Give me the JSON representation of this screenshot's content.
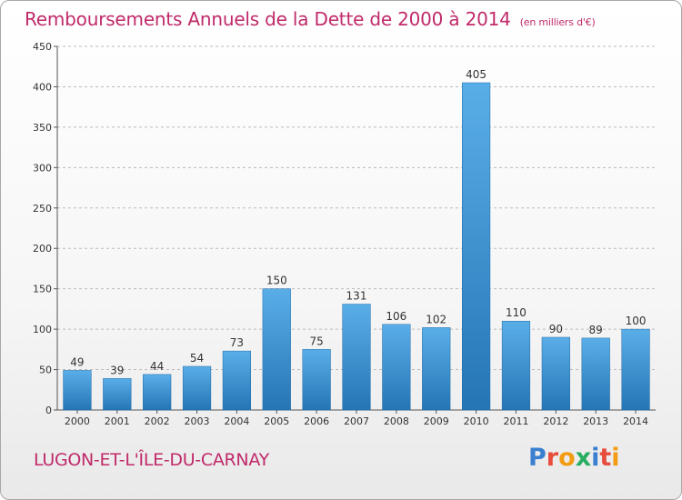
{
  "title": "Remboursements Annuels de la Dette de 2000 à 2014",
  "subtitle": "(en milliers d'€)",
  "location": "LUGON-ET-L'ÎLE-DU-CARNAY",
  "logo": {
    "text": "Proxiti",
    "letters": [
      {
        "ch": "P",
        "color": "#3b7fd0"
      },
      {
        "ch": "r",
        "color": "#e74c3c"
      },
      {
        "ch": "o",
        "color": "#f39c12"
      },
      {
        "ch": "x",
        "color": "#27ae60"
      },
      {
        "ch": "i",
        "color": "#3b7fd0"
      },
      {
        "ch": "t",
        "color": "#e74c3c"
      },
      {
        "ch": "i",
        "color": "#f39c12"
      }
    ]
  },
  "colors": {
    "bar_top": "#5aaee8",
    "bar_bottom": "#2575b5",
    "title": "#c02a6a",
    "grid": "#bbbbbb"
  },
  "chart_data": {
    "type": "bar",
    "title": "Remboursements Annuels de la Dette de 2000 à 2014",
    "subtitle": "(en milliers d'€)",
    "categories": [
      "2000",
      "2001",
      "2002",
      "2003",
      "2004",
      "2005",
      "2006",
      "2007",
      "2008",
      "2009",
      "2010",
      "2011",
      "2012",
      "2013",
      "2014"
    ],
    "values": [
      49,
      39,
      44,
      54,
      73,
      150,
      75,
      131,
      106,
      102,
      405,
      110,
      90,
      89,
      100
    ],
    "ylim": [
      0,
      450
    ],
    "yticks": [
      0,
      50,
      100,
      150,
      200,
      250,
      300,
      350,
      400,
      450
    ],
    "grid": true,
    "data_labels": true
  }
}
